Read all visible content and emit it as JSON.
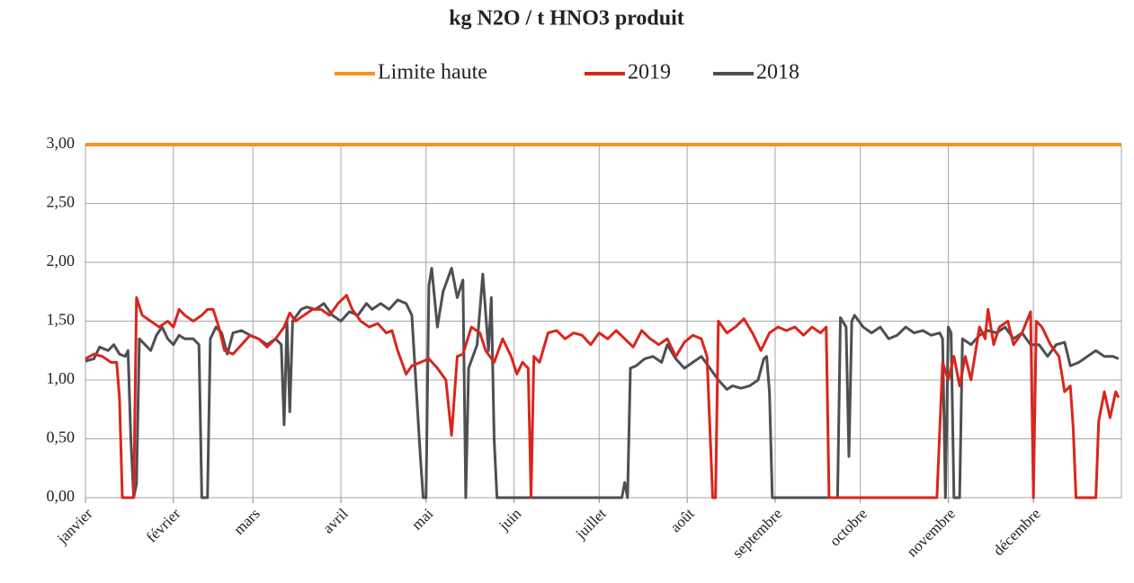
{
  "chart_data": {
    "type": "line",
    "title": "kg N2O / t HNO3 produit",
    "xlim": [
      0,
      365
    ],
    "xticks": [
      {
        "value": 0,
        "label": "janvier"
      },
      {
        "value": 31,
        "label": "février"
      },
      {
        "value": 59,
        "label": "mars"
      },
      {
        "value": 90,
        "label": "avril"
      },
      {
        "value": 120,
        "label": "mai"
      },
      {
        "value": 151,
        "label": "juin"
      },
      {
        "value": 181,
        "label": "juillet"
      },
      {
        "value": 212,
        "label": "août"
      },
      {
        "value": 243,
        "label": "septembre"
      },
      {
        "value": 273,
        "label": "octobre"
      },
      {
        "value": 304,
        "label": "novembre"
      },
      {
        "value": 334,
        "label": "décembre"
      }
    ],
    "ylim": [
      0,
      3
    ],
    "yticks": [
      {
        "value": 0,
        "label": "0,00"
      },
      {
        "value": 0.5,
        "label": "0,50"
      },
      {
        "value": 1,
        "label": "1,00"
      },
      {
        "value": 1.5,
        "label": "1,50"
      },
      {
        "value": 2,
        "label": "2,00"
      },
      {
        "value": 2.5,
        "label": "2,50"
      },
      {
        "value": 3,
        "label": "3,00"
      }
    ],
    "grid": true,
    "legend": "top",
    "series": [
      {
        "name": "Limite haute",
        "color": "#f7941d",
        "x": [
          0,
          365
        ],
        "values": [
          3,
          3
        ]
      },
      {
        "name": "2019",
        "color": "#d9261c",
        "x": [
          0,
          3,
          6,
          9,
          11,
          12,
          13,
          17,
          18,
          20,
          23,
          26,
          29,
          31,
          33,
          35,
          38,
          41,
          43,
          45,
          47,
          49,
          52,
          55,
          58,
          61,
          64,
          67,
          70,
          72,
          74,
          77,
          80,
          83,
          86,
          89,
          92,
          94,
          97,
          100,
          103,
          106,
          108,
          110,
          113,
          115,
          118,
          121,
          124,
          127,
          129,
          131,
          133,
          136,
          139,
          141,
          144,
          147,
          150,
          152,
          154,
          156,
          157,
          158,
          160,
          163,
          166,
          169,
          172,
          175,
          178,
          181,
          184,
          187,
          190,
          193,
          196,
          199,
          202,
          205,
          208,
          211,
          214,
          217,
          219,
          221,
          222,
          223,
          226,
          229,
          232,
          235,
          238,
          241,
          244,
          247,
          250,
          253,
          256,
          259,
          261,
          262,
          300,
          302,
          304,
          306,
          308,
          310,
          312,
          315,
          317,
          318,
          320,
          322,
          325,
          327,
          330,
          333,
          334,
          335,
          337,
          340,
          343,
          345,
          347,
          348,
          349,
          356,
          357,
          359,
          361,
          363,
          364
        ],
        "values": [
          1.18,
          1.22,
          1.2,
          1.15,
          1.15,
          0.85,
          0,
          0,
          1.7,
          1.55,
          1.5,
          1.45,
          1.5,
          1.45,
          1.6,
          1.55,
          1.5,
          1.55,
          1.6,
          1.6,
          1.45,
          1.25,
          1.22,
          1.3,
          1.38,
          1.35,
          1.28,
          1.35,
          1.45,
          1.57,
          1.5,
          1.55,
          1.6,
          1.6,
          1.55,
          1.65,
          1.72,
          1.6,
          1.5,
          1.45,
          1.48,
          1.4,
          1.42,
          1.25,
          1.05,
          1.12,
          1.15,
          1.18,
          1.1,
          1.0,
          0.53,
          1.2,
          1.22,
          1.45,
          1.4,
          1.25,
          1.15,
          1.35,
          1.2,
          1.05,
          1.15,
          1.1,
          0,
          1.2,
          1.15,
          1.4,
          1.42,
          1.35,
          1.4,
          1.38,
          1.3,
          1.4,
          1.35,
          1.42,
          1.35,
          1.28,
          1.42,
          1.35,
          1.3,
          1.35,
          1.2,
          1.32,
          1.38,
          1.35,
          1.2,
          0,
          0,
          1.5,
          1.4,
          1.45,
          1.52,
          1.4,
          1.25,
          1.4,
          1.45,
          1.42,
          1.45,
          1.38,
          1.45,
          1.4,
          1.45,
          0,
          0,
          1.15,
          1.0,
          1.2,
          0.95,
          1.2,
          1.0,
          1.45,
          1.35,
          1.6,
          1.3,
          1.45,
          1.5,
          1.3,
          1.4,
          1.58,
          0,
          1.5,
          1.45,
          1.3,
          1.2,
          0.9,
          0.95,
          0.6,
          0,
          0,
          0.65,
          0.9,
          0.68,
          0.9,
          0.85
        ]
      },
      {
        "name": "2018",
        "color": "#4d4f53",
        "x": [
          0,
          3,
          5,
          8,
          10,
          12,
          14,
          15,
          16,
          17,
          18,
          19,
          21,
          23,
          25,
          27,
          29,
          31,
          33,
          35,
          38,
          40,
          41,
          43,
          44,
          46,
          48,
          50,
          52,
          55,
          58,
          61,
          64,
          67,
          69,
          70,
          71,
          72,
          73,
          76,
          78,
          81,
          84,
          87,
          90,
          93,
          96,
          99,
          101,
          104,
          107,
          110,
          113,
          115,
          118,
          119,
          120,
          121,
          122,
          124,
          126,
          129,
          131,
          133,
          134,
          135,
          138,
          140,
          142,
          143,
          144,
          145,
          189,
          190,
          191,
          192,
          194,
          197,
          200,
          203,
          205,
          208,
          211,
          214,
          217,
          220,
          223,
          226,
          228,
          231,
          234,
          237,
          239,
          240,
          241,
          242,
          265,
          266,
          268,
          269,
          270,
          271,
          274,
          277,
          280,
          283,
          286,
          289,
          292,
          295,
          298,
          301,
          302,
          303,
          304,
          305,
          306,
          308,
          309,
          312,
          315,
          318,
          321,
          324,
          327,
          330,
          333,
          336,
          339,
          342,
          345,
          347,
          350,
          353,
          356,
          359,
          362,
          364
        ],
        "values": [
          1.16,
          1.18,
          1.28,
          1.25,
          1.3,
          1.22,
          1.2,
          1.25,
          0.5,
          0,
          0.12,
          1.35,
          1.3,
          1.25,
          1.38,
          1.45,
          1.35,
          1.3,
          1.38,
          1.35,
          1.35,
          1.3,
          0,
          0,
          1.35,
          1.45,
          1.4,
          1.22,
          1.4,
          1.42,
          1.38,
          1.35,
          1.3,
          1.35,
          1.3,
          0.62,
          1.5,
          0.73,
          1.5,
          1.6,
          1.62,
          1.6,
          1.65,
          1.55,
          1.5,
          1.58,
          1.55,
          1.65,
          1.6,
          1.65,
          1.6,
          1.68,
          1.65,
          1.55,
          0.35,
          0,
          0,
          1.8,
          1.95,
          1.45,
          1.75,
          1.95,
          1.7,
          1.85,
          0,
          1.1,
          1.3,
          1.9,
          1.25,
          1.7,
          0.5,
          0,
          0,
          0.13,
          0,
          1.1,
          1.12,
          1.18,
          1.2,
          1.15,
          1.3,
          1.18,
          1.1,
          1.15,
          1.2,
          1.1,
          1.0,
          0.92,
          0.95,
          0.93,
          0.95,
          1.0,
          1.18,
          1.2,
          0.9,
          0,
          0,
          1.53,
          1.45,
          0.35,
          1.5,
          1.55,
          1.45,
          1.4,
          1.45,
          1.35,
          1.38,
          1.45,
          1.4,
          1.42,
          1.38,
          1.4,
          1.35,
          0,
          1.45,
          1.4,
          0,
          0,
          1.35,
          1.3,
          1.38,
          1.42,
          1.4,
          1.45,
          1.35,
          1.4,
          1.3,
          1.3,
          1.2,
          1.3,
          1.32,
          1.12,
          1.15,
          1.2,
          1.25,
          1.2,
          1.2,
          1.18
        ]
      }
    ]
  }
}
